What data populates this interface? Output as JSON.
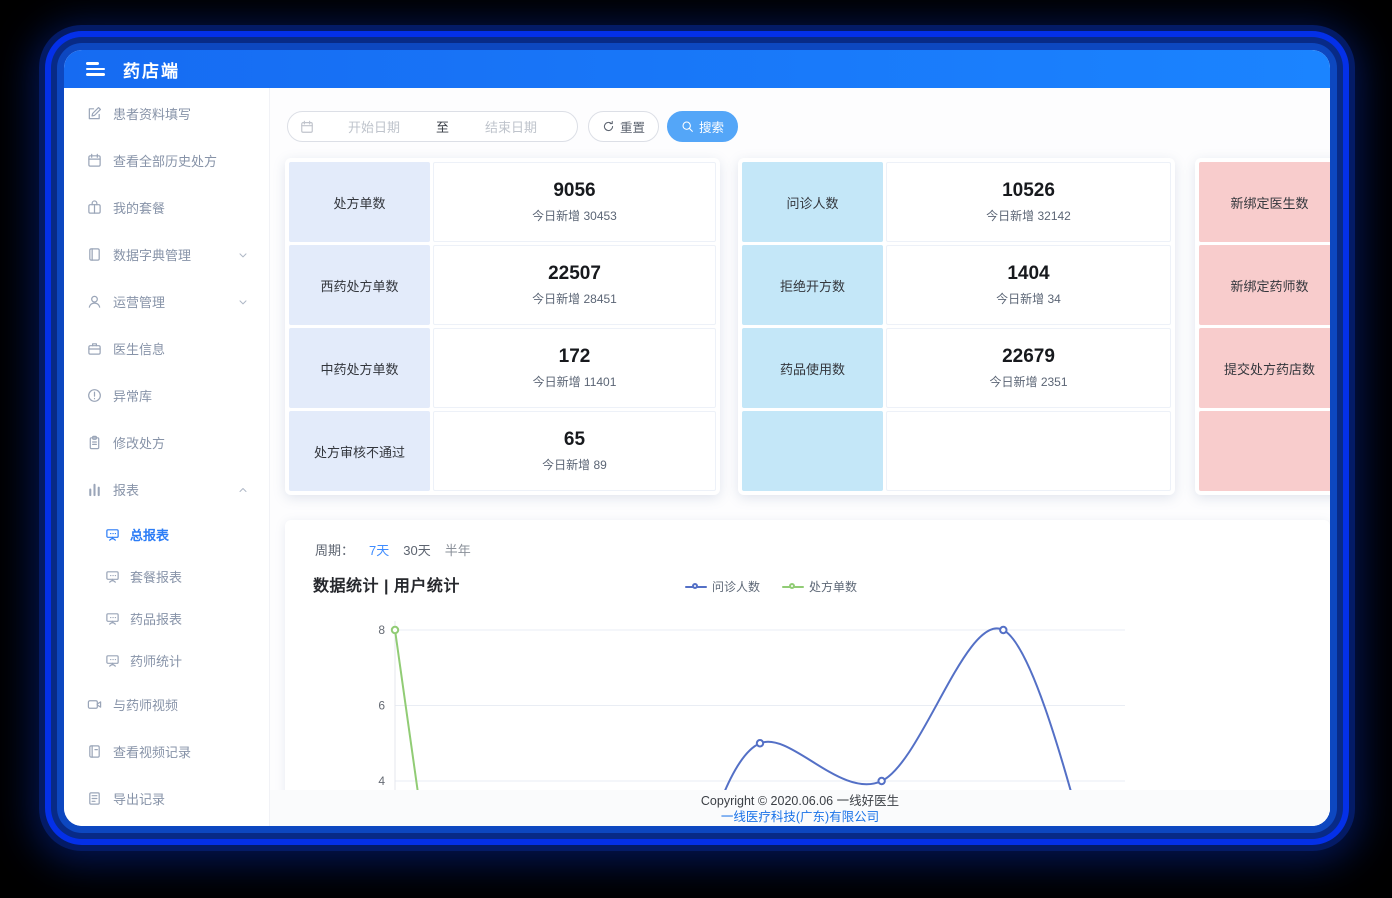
{
  "app": {
    "title": "药店端"
  },
  "sidebar": {
    "items": [
      {
        "label": "患者资料填写",
        "icon": "edit-icon"
      },
      {
        "label": "查看全部历史处方",
        "icon": "calendar-icon"
      },
      {
        "label": "我的套餐",
        "icon": "package-icon"
      },
      {
        "label": "数据字典管理",
        "icon": "dictionary-icon",
        "chevron": "down"
      },
      {
        "label": "运营管理",
        "icon": "user-icon",
        "chevron": "down"
      },
      {
        "label": "医生信息",
        "icon": "doctor-kit-icon"
      },
      {
        "label": "异常库",
        "icon": "warning-icon"
      },
      {
        "label": "修改处方",
        "icon": "clipboard-icon"
      },
      {
        "label": "报表",
        "icon": "bar-chart-icon",
        "chevron": "up",
        "children": [
          {
            "label": "总报表",
            "icon": "board-icon",
            "active": true
          },
          {
            "label": "套餐报表",
            "icon": "board-icon"
          },
          {
            "label": "药品报表",
            "icon": "board-icon"
          },
          {
            "label": "药师统计",
            "icon": "board-icon"
          }
        ]
      },
      {
        "label": "与药师视频",
        "icon": "video-icon"
      },
      {
        "label": "查看视频记录",
        "icon": "video-record-icon"
      },
      {
        "label": "导出记录",
        "icon": "export-icon"
      }
    ]
  },
  "toolbar": {
    "start_placeholder": "开始日期",
    "separator": "至",
    "end_placeholder": "结束日期",
    "reset_label": "重置",
    "search_label": "搜索"
  },
  "stat_groups": [
    {
      "theme": "blue",
      "rows": [
        {
          "label": "处方单数",
          "value": "9056",
          "sub": "今日新增 30453"
        },
        {
          "label": "西药处方单数",
          "value": "22507",
          "sub": "今日新增 28451"
        },
        {
          "label": "中药处方单数",
          "value": "172",
          "sub": "今日新增 11401"
        },
        {
          "label": "处方审核不通过",
          "value": "65",
          "sub": "今日新增 89"
        }
      ]
    },
    {
      "theme": "cyan",
      "rows": [
        {
          "label": "问诊人数",
          "value": "10526",
          "sub": "今日新增 32142"
        },
        {
          "label": "拒绝开方数",
          "value": "1404",
          "sub": "今日新增 34"
        },
        {
          "label": "药品使用数",
          "value": "22679",
          "sub": "今日新增 2351"
        },
        {
          "label": "",
          "value": "",
          "sub": ""
        }
      ]
    },
    {
      "theme": "pink",
      "rows": [
        {
          "label": "新绑定医生数",
          "value": "",
          "sub": ""
        },
        {
          "label": "新绑定药师数",
          "value": "",
          "sub": ""
        },
        {
          "label": "提交处方药店数",
          "value": "",
          "sub": ""
        },
        {
          "label": "",
          "value": "",
          "sub": ""
        }
      ]
    }
  ],
  "chart_section": {
    "period_label": "周期：",
    "periods": [
      "7天",
      "30天",
      "半年"
    ],
    "active_period": "7天",
    "title": "数据统计 | 用户统计"
  },
  "chart_data": {
    "type": "line",
    "title": "数据统计 | 用户统计",
    "y_ticks": [
      4,
      6,
      8
    ],
    "ylim_visible": [
      3.7,
      8.3
    ],
    "x_axis_labels_visible": false,
    "bottom_clipped_by_footer": true,
    "legend_position": "top-center",
    "series": [
      {
        "name": "问诊人数",
        "color": "#5470c6",
        "points": [
          {
            "x": 2.5,
            "v": 2
          },
          {
            "x": 3,
            "v": 5
          },
          {
            "x": 4,
            "v": 4
          },
          {
            "x": 5,
            "v": 8
          },
          {
            "x": 5.8,
            "v": 1
          }
        ],
        "visible_markers": [
          {
            "x": 3,
            "v": 5
          },
          {
            "x": 4,
            "v": 4
          },
          {
            "x": 5,
            "v": 8
          }
        ]
      },
      {
        "name": "处方单数",
        "color": "#91cc75",
        "points": [
          {
            "x": 0,
            "v": 8
          },
          {
            "x": 0.35,
            "v": 0
          }
        ],
        "visible_markers": [
          {
            "x": 0,
            "v": 8
          }
        ]
      }
    ]
  },
  "footer": {
    "line1": "Copyright © 2020.06.06 一线好医生",
    "line2": "一线医疗科技(广东)有限公司"
  }
}
